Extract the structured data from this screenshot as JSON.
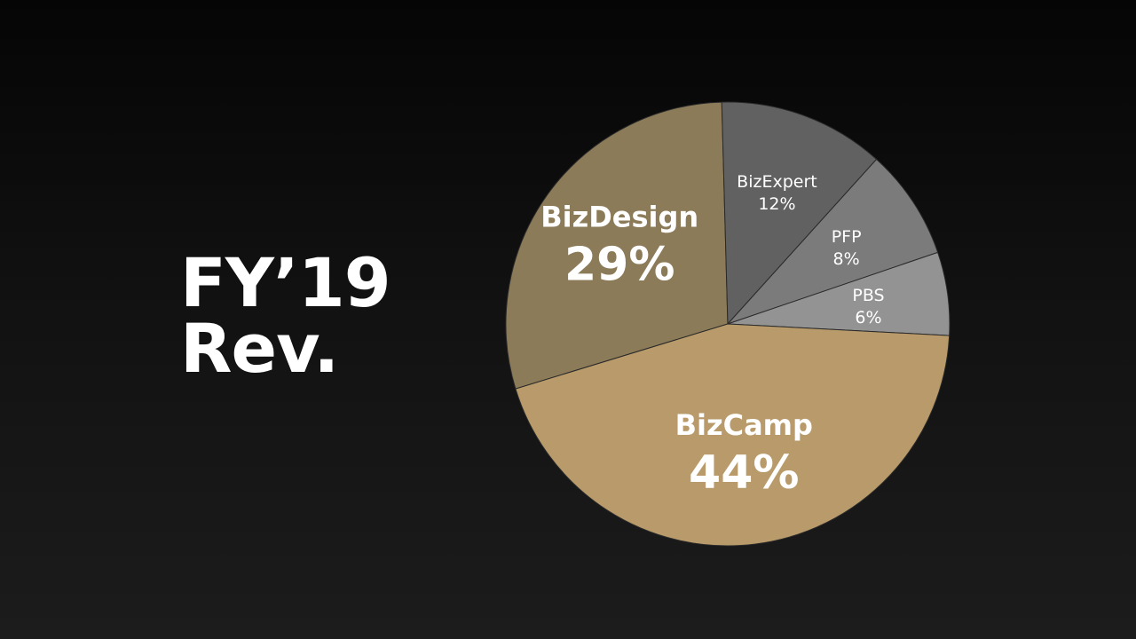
{
  "slide": {
    "title_line1": "FY’19",
    "title_line2": "Rev."
  },
  "chart_data": {
    "type": "pie",
    "title": "",
    "slices": [
      {
        "label": "BizDesign",
        "value": 29,
        "value_label": "29%",
        "color": "#8c7b58",
        "emphasis": "large"
      },
      {
        "label": "BizExpert",
        "value": 12,
        "value_label": "12%",
        "color": "#616161",
        "emphasis": "small"
      },
      {
        "label": "PFP",
        "value": 8,
        "value_label": "8%",
        "color": "#7b7b7b",
        "emphasis": "small"
      },
      {
        "label": "PBS",
        "value": 6,
        "value_label": "6%",
        "color": "#939393",
        "emphasis": "small"
      },
      {
        "label": "BizCamp",
        "value": 44,
        "value_label": "44%",
        "color": "#b99b6b",
        "emphasis": "large"
      }
    ],
    "legend": "none"
  }
}
